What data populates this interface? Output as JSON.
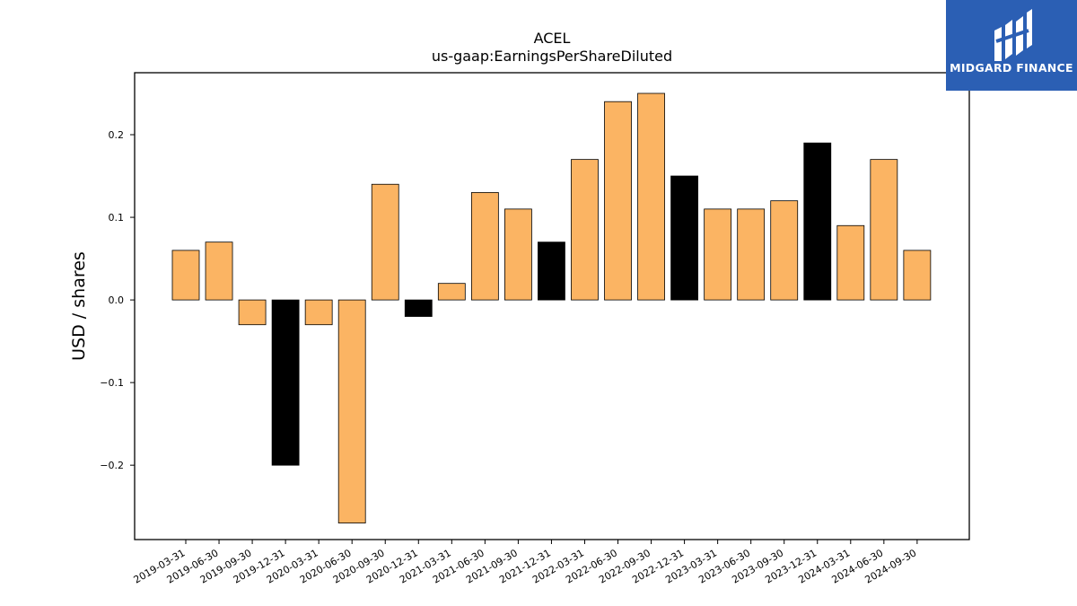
{
  "chart_data": {
    "type": "bar",
    "title": "ACEL",
    "subtitle": "us-gaap:EarningsPerShareDiluted",
    "ylabel": "USD / shares",
    "ylim": [
      -0.29,
      0.275
    ],
    "yticks": [
      {
        "value": 0.2,
        "label": "0.2"
      },
      {
        "value": 0.1,
        "label": "0.1"
      },
      {
        "value": 0.0,
        "label": "0.0"
      },
      {
        "value": -0.1,
        "label": "−0.1"
      },
      {
        "value": -0.2,
        "label": "−0.2"
      }
    ],
    "categories": [
      "2019-03-31",
      "2019-06-30",
      "2019-09-30",
      "2019-12-31",
      "2020-03-31",
      "2020-06-30",
      "2020-09-30",
      "2020-12-31",
      "2021-03-31",
      "2021-06-30",
      "2021-09-30",
      "2021-12-31",
      "2022-03-31",
      "2022-06-30",
      "2022-09-30",
      "2022-12-31",
      "2023-03-31",
      "2023-06-30",
      "2023-09-30",
      "2023-12-31",
      "2024-03-31",
      "2024-06-30",
      "2024-09-30"
    ],
    "values": [
      0.06,
      0.07,
      -0.03,
      -0.2,
      -0.03,
      -0.27,
      0.14,
      -0.02,
      0.02,
      0.13,
      0.11,
      0.07,
      0.17,
      0.24,
      0.25,
      0.15,
      0.11,
      0.11,
      0.12,
      0.19,
      0.09,
      0.17,
      0.06
    ],
    "colors": [
      "#fbb463",
      "#fbb463",
      "#fbb463",
      "#000000",
      "#fbb463",
      "#fbb463",
      "#fbb463",
      "#000000",
      "#fbb463",
      "#fbb463",
      "#fbb463",
      "#000000",
      "#fbb463",
      "#fbb463",
      "#fbb463",
      "#000000",
      "#fbb463",
      "#fbb463",
      "#fbb463",
      "#000000",
      "#fbb463",
      "#fbb463",
      "#fbb463"
    ],
    "grid": false
  },
  "logo": {
    "text": "MIDGARD FINANCE",
    "background": "#2b5fb4"
  }
}
